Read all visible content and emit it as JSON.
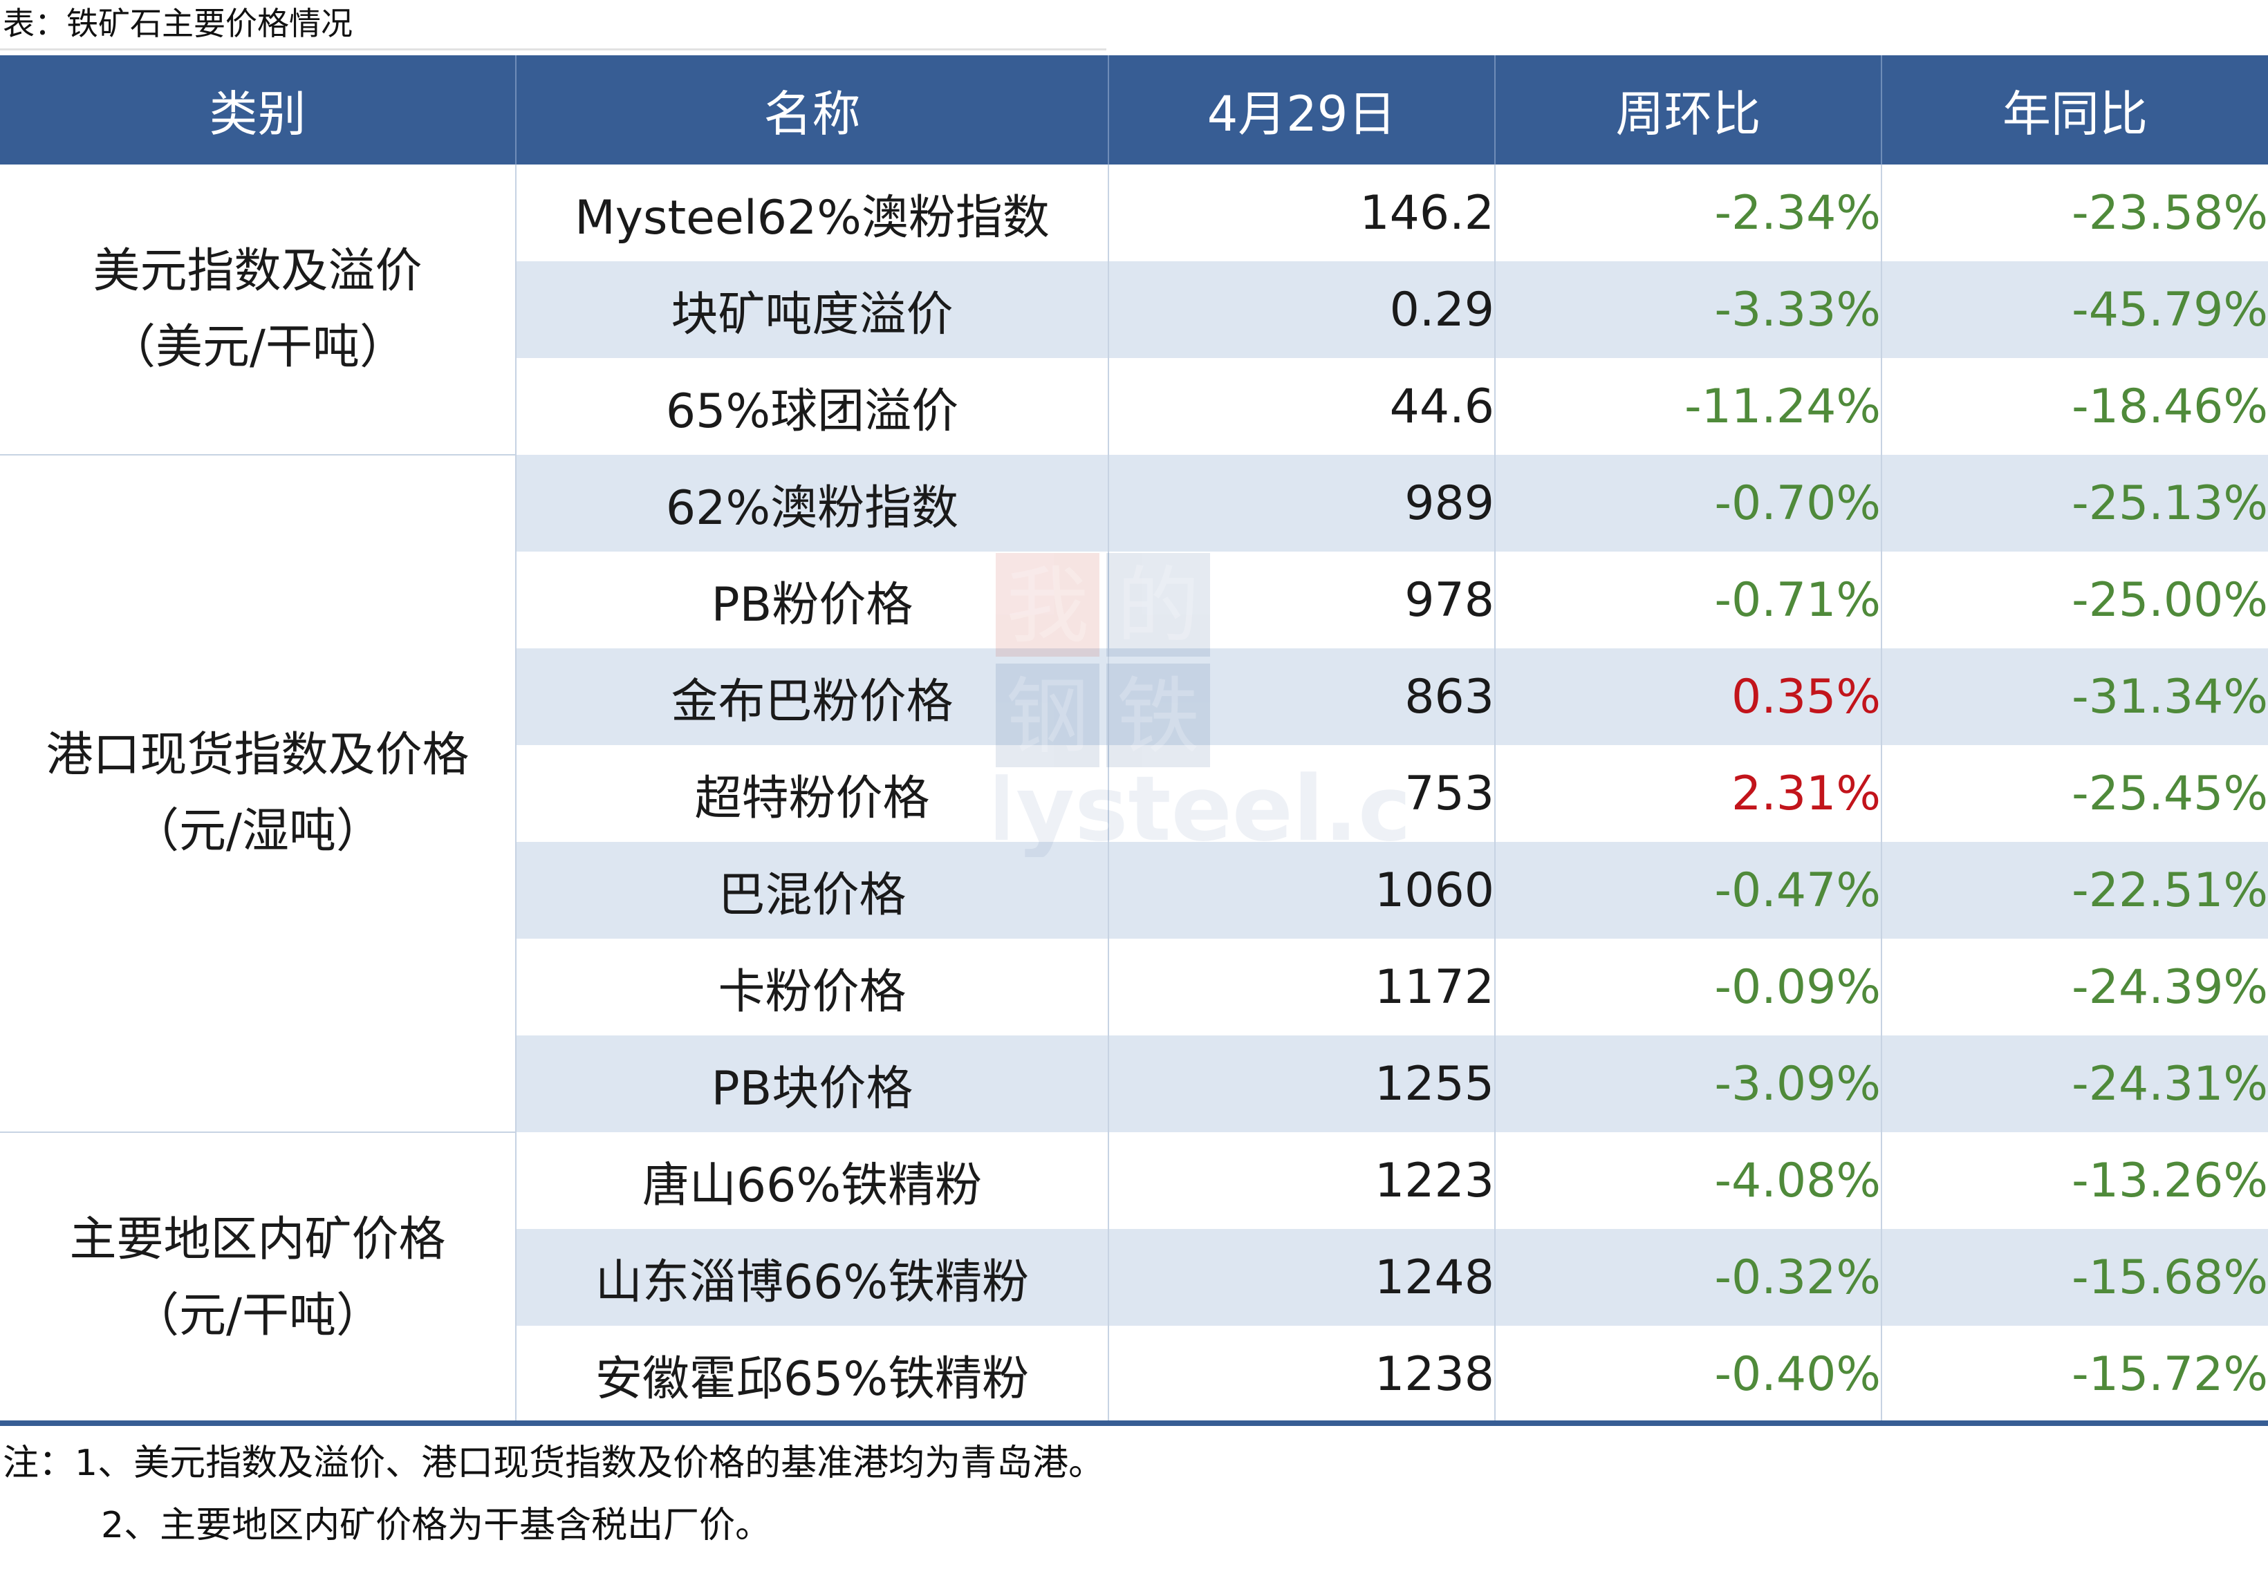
{
  "caption": "表：铁矿石主要价格情况",
  "headers": [
    "类别",
    "名称",
    "4月29日",
    "周环比",
    "年同比"
  ],
  "groups": [
    {
      "category_line1": "美元指数及溢价",
      "category_line2": "（美元/干吨）",
      "rows": [
        {
          "name": "Mysteel62%澳粉指数",
          "value": "146.2",
          "wow": "-2.34%",
          "yoy": "-23.58%"
        },
        {
          "name": "块矿吨度溢价",
          "value": "0.29",
          "wow": "-3.33%",
          "yoy": "-45.79%"
        },
        {
          "name": "65%球团溢价",
          "value": "44.6",
          "wow": "-11.24%",
          "yoy": "-18.46%"
        }
      ]
    },
    {
      "category_line1": "港口现货指数及价格",
      "category_line2": "（元/湿吨）",
      "rows": [
        {
          "name": "62%澳粉指数",
          "value": "989",
          "wow": "-0.70%",
          "yoy": "-25.13%"
        },
        {
          "name": "PB粉价格",
          "value": "978",
          "wow": "-0.71%",
          "yoy": "-25.00%"
        },
        {
          "name": "金布巴粉价格",
          "value": "863",
          "wow": "0.35%",
          "yoy": "-31.34%"
        },
        {
          "name": "超特粉价格",
          "value": "753",
          "wow": "2.31%",
          "yoy": "-25.45%"
        },
        {
          "name": "巴混价格",
          "value": "1060",
          "wow": "-0.47%",
          "yoy": "-22.51%"
        },
        {
          "name": "卡粉价格",
          "value": "1172",
          "wow": "-0.09%",
          "yoy": "-24.39%"
        },
        {
          "name": "PB块价格",
          "value": "1255",
          "wow": "-3.09%",
          "yoy": "-24.31%"
        }
      ]
    },
    {
      "category_line1": "主要地区内矿价格",
      "category_line2": "（元/干吨）",
      "rows": [
        {
          "name": "唐山66%铁精粉",
          "value": "1223",
          "wow": "-4.08%",
          "yoy": "-13.26%"
        },
        {
          "name": "山东淄博66%铁精粉",
          "value": "1248",
          "wow": "-0.32%",
          "yoy": "-15.68%"
        },
        {
          "name": "安徽霍邱65%铁精粉",
          "value": "1238",
          "wow": "-0.40%",
          "yoy": "-15.72%"
        }
      ]
    }
  ],
  "notes": {
    "line1": "注：1、美元指数及溢价、港口现货指数及价格的基准港均为青岛港。",
    "line2": "2、主要地区内矿价格为干基含税出厂价。"
  },
  "watermark": {
    "chars": [
      "我",
      "的",
      "钢",
      "铁"
    ],
    "brand": "Mysteel.com"
  },
  "colors": {
    "header_bg": "#375d94",
    "row_shade": "#dde6f1",
    "negative_change": "#4f8a3a",
    "positive_change": "#c2141b",
    "watermark_red": "#c0392b"
  }
}
